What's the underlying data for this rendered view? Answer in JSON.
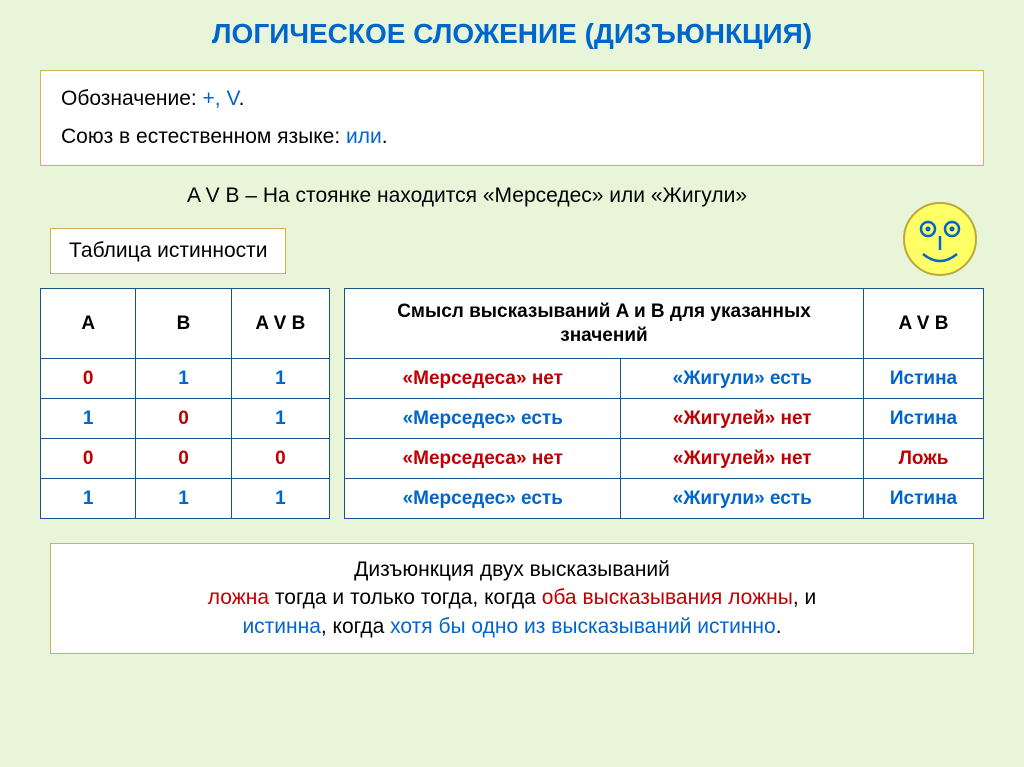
{
  "title": "ЛОГИЧЕСКОЕ СЛОЖЕНИЕ (ДИЗЪЮНКЦИЯ)",
  "notation": {
    "label": "Обозначение: ",
    "symbols": "+, V",
    "dot1": ".",
    "lang_label": "Союз в естественном языке: ",
    "lang_value": "или",
    "dot2": "."
  },
  "example": "A V B – На стоянке находится «Мерседес» или «Жигули»",
  "truth_label": "Таблица истинности",
  "truth_table": {
    "headers": {
      "a": "A",
      "b": "B",
      "avb": "A V B"
    },
    "rows": [
      {
        "a": "0",
        "b": "1",
        "r": "1",
        "a_col": "#c00000",
        "b_col": "#0066cc",
        "r_col": "#0066cc"
      },
      {
        "a": "1",
        "b": "0",
        "r": "1",
        "a_col": "#0066cc",
        "b_col": "#c00000",
        "r_col": "#0066cc"
      },
      {
        "a": "0",
        "b": "0",
        "r": "0",
        "a_col": "#c00000",
        "b_col": "#c00000",
        "r_col": "#c00000"
      },
      {
        "a": "1",
        "b": "1",
        "r": "1",
        "a_col": "#0066cc",
        "b_col": "#0066cc",
        "r_col": "#0066cc"
      }
    ]
  },
  "meaning_table": {
    "header_main": "Смысл высказываний A и B для указанных значений",
    "header_avb": "A V B",
    "rows": [
      {
        "m1": "«Мерседеса» нет",
        "m1_col": "#c00000",
        "m2": "«Жигули» есть",
        "m2_col": "#0066cc",
        "res": "Истина",
        "res_col": "#0066cc"
      },
      {
        "m1": "«Мерседес» есть",
        "m1_col": "#0066cc",
        "m2": "«Жигулей» нет",
        "m2_col": "#c00000",
        "res": "Истина",
        "res_col": "#0066cc"
      },
      {
        "m1": "«Мерседеса» нет",
        "m1_col": "#c00000",
        "m2": "«Жигулей» нет",
        "m2_col": "#c00000",
        "res": "Ложь",
        "res_col": "#c00000"
      },
      {
        "m1": "«Мерседес» есть",
        "m1_col": "#0066cc",
        "m2": "«Жигули» есть",
        "m2_col": "#0066cc",
        "res": "Истина",
        "res_col": "#0066cc"
      }
    ]
  },
  "summary": {
    "l1": "Дизъюнкция двух высказываний",
    "l2a": "ложна",
    "l2b": " тогда и только тогда, когда ",
    "l2c": "оба высказывания ложны",
    "l2d": ", и",
    "l3a": "истинна",
    "l3b": ", когда ",
    "l3c": "хотя бы одно из высказываний истинно",
    "l3d": "."
  },
  "colors": {
    "bg": "#e8f5d8",
    "border_box": "#d4b050",
    "border_table": "#1a5490",
    "blue": "#0066cc",
    "red": "#c00000",
    "smiley_bg": "#ffff66",
    "smiley_stroke": "#bda838"
  }
}
